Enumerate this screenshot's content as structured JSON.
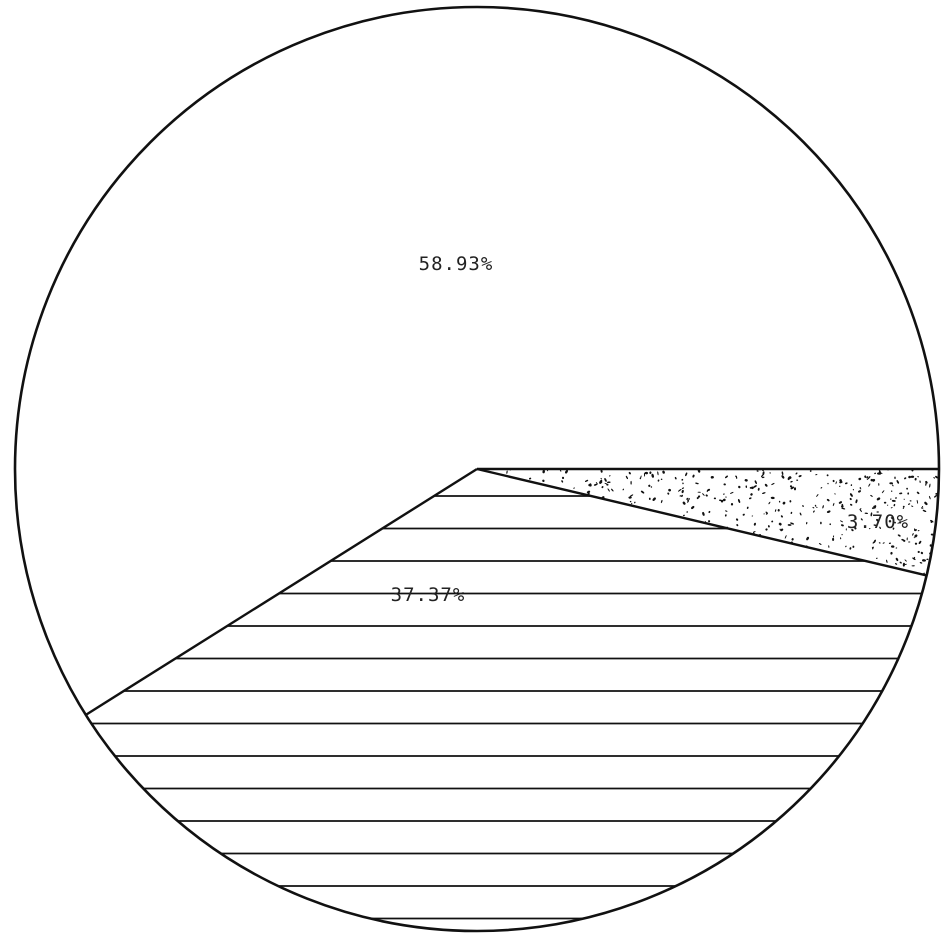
{
  "chart_data": {
    "type": "pie",
    "title": "",
    "slices": [
      {
        "label": "58.93%",
        "value": 58.93,
        "fill": "plain"
      },
      {
        "label": "3.70%",
        "value": 3.7,
        "fill": "stipple"
      },
      {
        "label": "37.37%",
        "value": 37.37,
        "fill": "horizontal-hatch"
      }
    ],
    "colors": {
      "stroke": "#111111",
      "background": "#ffffff",
      "text": "#222222"
    }
  }
}
